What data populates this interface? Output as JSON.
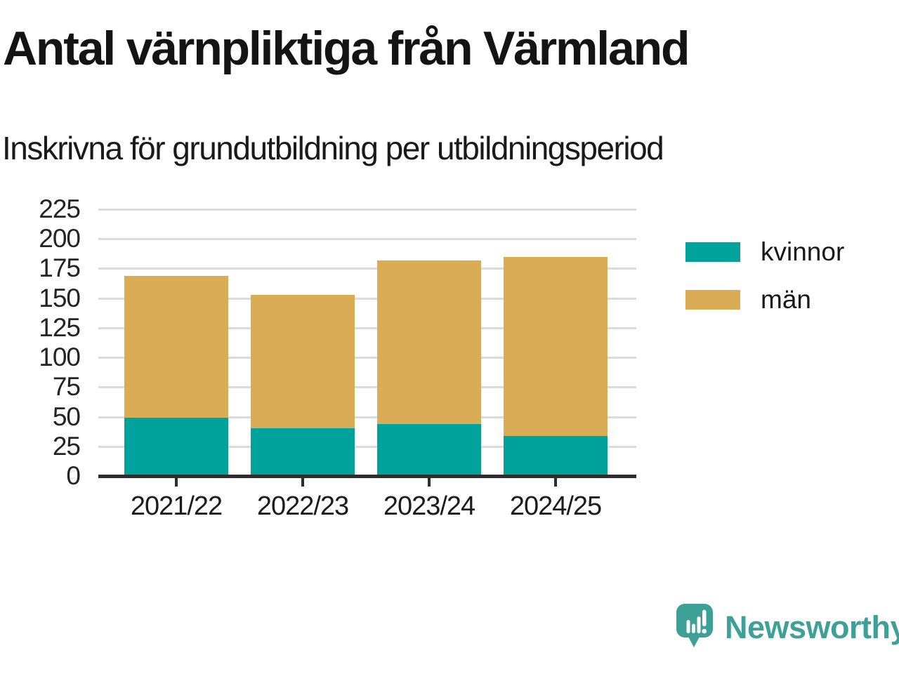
{
  "header": {
    "title": "Antal värnpliktiga från Värmland",
    "subtitle": "Inskrivna för grundutbildning per utbildningsperiod"
  },
  "chart_data": {
    "type": "bar",
    "stacked": true,
    "title": "Antal värnpliktiga från Värmland",
    "subtitle": "Inskrivna för grundutbildning per utbildningsperiod",
    "categories": [
      "2021/22",
      "2022/23",
      "2023/24",
      "2024/25"
    ],
    "series": [
      {
        "name": "kvinnor",
        "color": "#00A29B",
        "values": [
          49,
          40,
          44,
          34
        ]
      },
      {
        "name": "män",
        "color": "#D9AC55",
        "values": [
          120,
          113,
          138,
          151
        ]
      }
    ],
    "stack_totals": [
      169,
      153,
      182,
      185
    ],
    "xlabel": "",
    "ylabel": "",
    "ylim": [
      0,
      225
    ],
    "ytick_step": 25,
    "ytick_labels": [
      "0",
      "25",
      "50",
      "75",
      "100",
      "125",
      "150",
      "175",
      "200",
      "225"
    ],
    "grid": "horizontal",
    "legend_position": "right",
    "colors": {
      "gridline": "#DBDBDB",
      "axis": "#2D2D2D",
      "text": "#1C1C1C"
    }
  },
  "branding": {
    "logo_text": "Newsworthy",
    "logo_color": "#3EA098",
    "logo_icon": "speech-bubble-bar-chart-exclamation"
  }
}
